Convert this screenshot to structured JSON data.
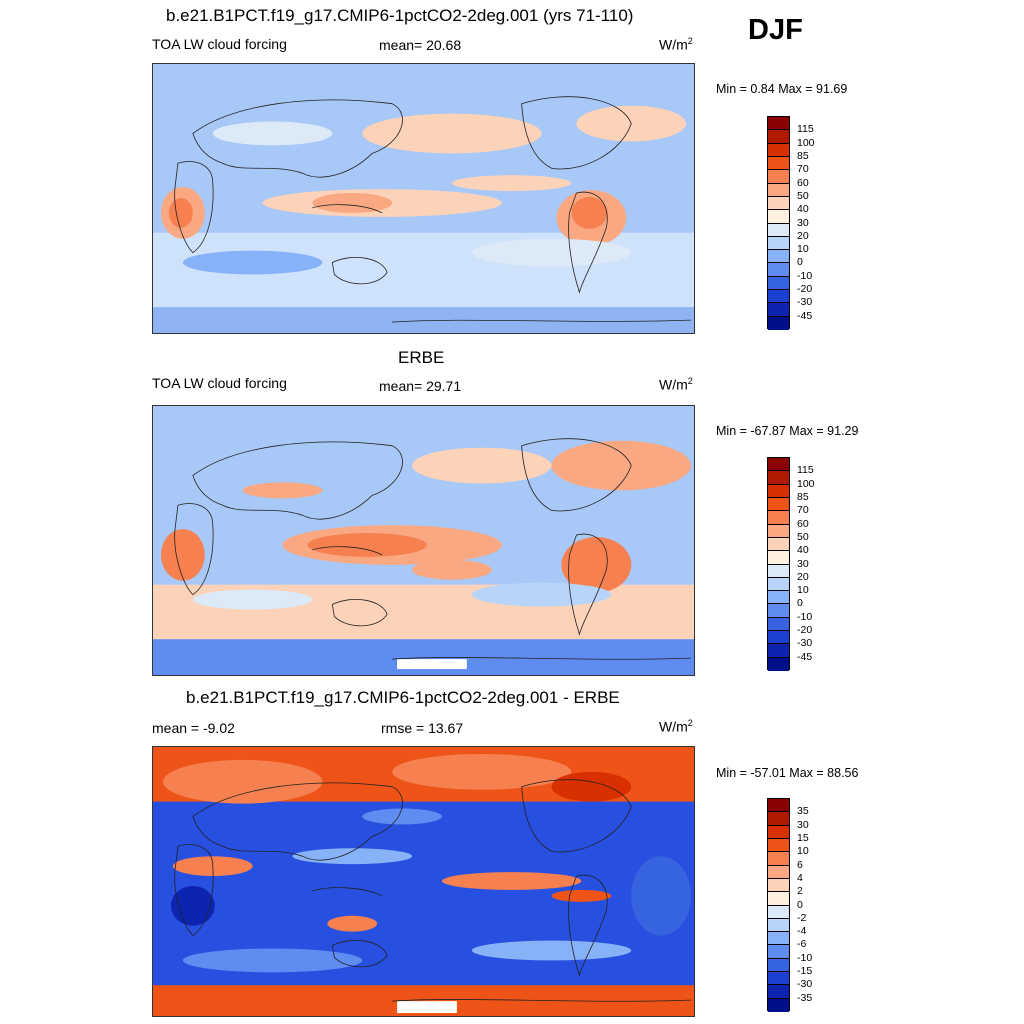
{
  "season": "DJF",
  "panels": [
    {
      "title": "b.e21.B1PCT.f19_g17.CMIP6-1pctCO2-2deg.001 (yrs 71-110)",
      "left_label": "TOA LW cloud forcing",
      "center_label": "mean=  20.68",
      "units": "W/m",
      "units_sup": "2",
      "minmax": "Min =   0.84 Max =  91.69",
      "scale": "abs",
      "bg": "#a8c8f8"
    },
    {
      "title": "ERBE",
      "left_label": "TOA LW cloud forcing",
      "center_label": "mean=  29.71",
      "units": "W/m",
      "units_sup": "2",
      "minmax": "Min = -67.87 Max =  91.29",
      "scale": "abs",
      "bg": "#a8c8f8"
    },
    {
      "title": "b.e21.B1PCT.f19_g17.CMIP6-1pctCO2-2deg.001 - ERBE",
      "left_label": "mean =  -9.02",
      "center_label": "rmse =  13.67",
      "units": "W/m",
      "units_sup": "2",
      "minmax": "Min = -57.01 Max =  88.56",
      "scale": "diff",
      "bg": "#2850e0"
    }
  ],
  "colorbars": {
    "abs": {
      "labels": [
        "115",
        "100",
        "85",
        "70",
        "60",
        "50",
        "40",
        "30",
        "20",
        "10",
        "0",
        "-10",
        "-20",
        "-30",
        "-45"
      ],
      "colors": [
        "#8b0000",
        "#b01a00",
        "#d83000",
        "#ee5418",
        "#f68050",
        "#f9a882",
        "#fcd2b8",
        "#fef0e0",
        "#dceaf8",
        "#b8d4f8",
        "#88b2f8",
        "#5f8cf0",
        "#3664e0",
        "#1c40d0",
        "#0c24b0",
        "#00108a"
      ]
    },
    "diff": {
      "labels": [
        "35",
        "30",
        "15",
        "10",
        "6",
        "4",
        "2",
        "0",
        "-2",
        "-4",
        "-6",
        "-10",
        "-15",
        "-30",
        "-35"
      ],
      "colors": [
        "#8b0000",
        "#b01a00",
        "#d83000",
        "#ee5418",
        "#f68050",
        "#f9a882",
        "#fcd2b8",
        "#fef0e0",
        "#dceaf8",
        "#b8d4f8",
        "#88b2f8",
        "#5f8cf0",
        "#3664e0",
        "#1c40d0",
        "#0c24b0",
        "#00108a"
      ]
    }
  }
}
